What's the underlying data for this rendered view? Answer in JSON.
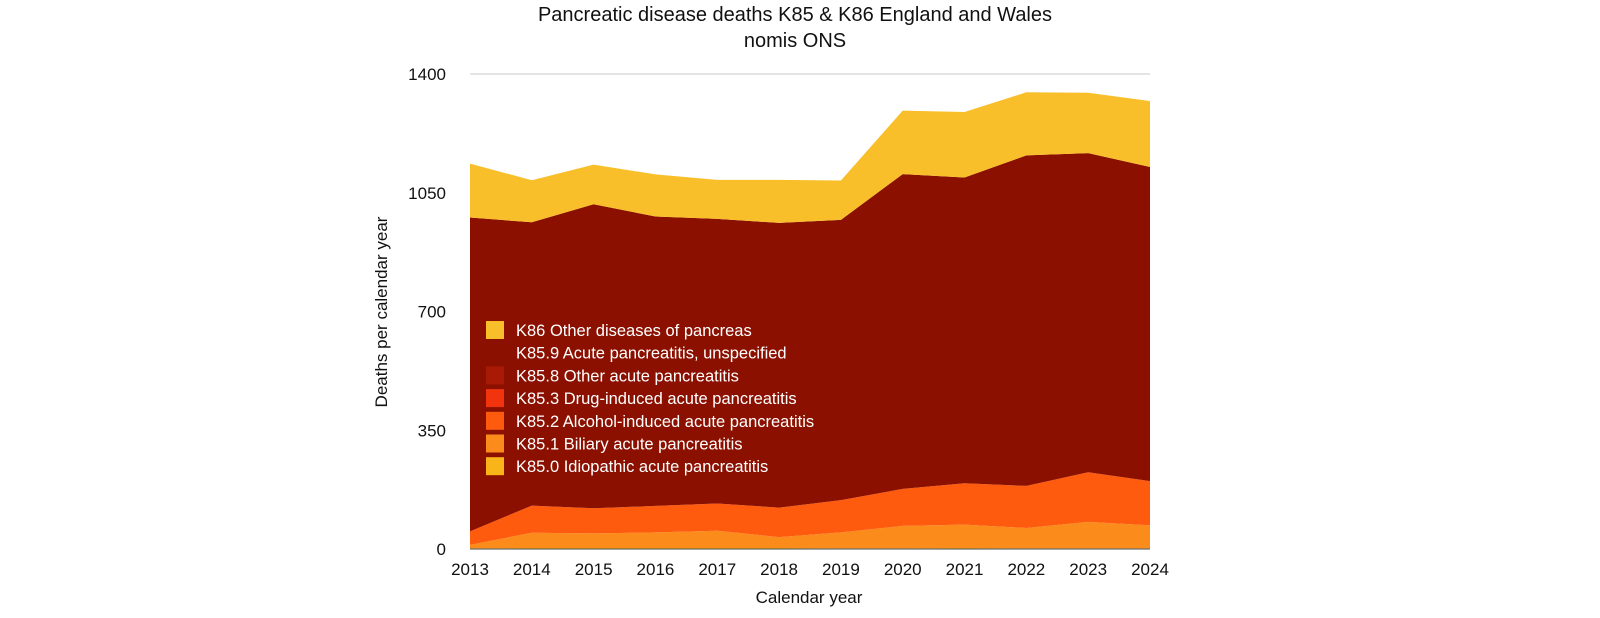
{
  "chart_data": {
    "type": "area",
    "stacked": true,
    "title": "Pancreatic disease deaths K85 & K86 England and Wales",
    "subtitle": "nomis ONS",
    "xlabel": "Calendar year",
    "ylabel": "Deaths per calendar year",
    "ylim": [
      0,
      1400
    ],
    "yticks": [
      0,
      350,
      700,
      1050,
      1400
    ],
    "x": [
      "2013",
      "2014",
      "2015",
      "2016",
      "2017",
      "2018",
      "2019",
      "2020",
      "2021",
      "2022",
      "2023",
      "2024"
    ],
    "grid": "top-line-only",
    "legend_position": "center-left",
    "series": [
      {
        "name": "K85.0 Idiopathic acute pancreatitis",
        "color": "#F8B418",
        "values": [
          2,
          3,
          3,
          3,
          3,
          3,
          2,
          2,
          3,
          2,
          2,
          2
        ]
      },
      {
        "name": "K85.1 Biliary acute pancreatitis",
        "color": "#FB8C1B",
        "values": [
          10,
          45,
          43,
          46,
          51,
          32,
          47,
          66,
          69,
          60,
          78,
          68
        ]
      },
      {
        "name": "K85.2 Alcohol-induced acute pancreatitis",
        "color": "#FF5B0F",
        "values": [
          40,
          80,
          74,
          78,
          80,
          87,
          95,
          109,
          122,
          124,
          146,
          130
        ]
      },
      {
        "name": "K85.3 Drug-induced acute pancreatitis",
        "color": "#F1330E",
        "values": [
          0,
          0,
          0,
          0,
          0,
          0,
          0,
          0,
          0,
          0,
          0,
          0
        ]
      },
      {
        "name": "K85.8 Other acute pancreatitis",
        "color": "#A81A05",
        "values": [
          0,
          0,
          0,
          0,
          0,
          0,
          0,
          0,
          0,
          0,
          0,
          0
        ]
      },
      {
        "name": "K85.9 Acute pancreatitis, unspecified",
        "color": "#8B1000",
        "values": [
          925,
          835,
          896,
          853,
          839,
          839,
          826,
          928,
          901,
          974,
          941,
          926
        ]
      },
      {
        "name": "K86 Other diseases of pancreas",
        "color": "#F8BF2B",
        "values": [
          159,
          124,
          117,
          124,
          115,
          127,
          116,
          187,
          193,
          186,
          178,
          194
        ]
      }
    ]
  }
}
